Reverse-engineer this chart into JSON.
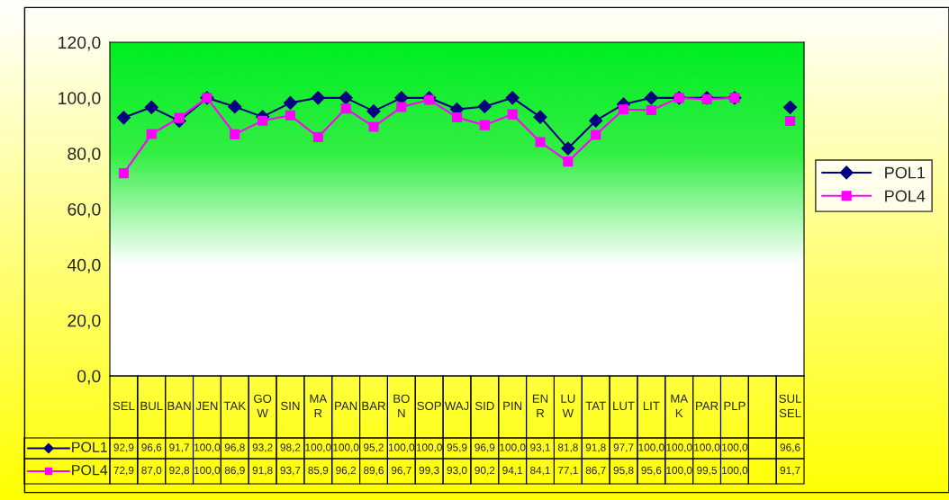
{
  "chart_data": {
    "type": "line",
    "categories": [
      "SEL",
      "BUL",
      "BAN",
      "JEN",
      "TAK",
      "GO\nW",
      "SIN",
      "MA\nR",
      "PAN",
      "BAR",
      "BO\nN",
      "SOP",
      "WAJ",
      "SID",
      "PIN",
      "EN\nR",
      "LU\nW",
      "TAT",
      "LUT",
      "LIT",
      "MA\nK",
      "PAR",
      "PLP",
      null,
      "SUL\nSEL"
    ],
    "series": [
      {
        "name": "POL1",
        "color": "#000080",
        "marker": "diamond",
        "values": [
          92.9,
          96.6,
          91.7,
          100.0,
          96.8,
          93.2,
          98.2,
          100.0,
          100.0,
          95.2,
          100.0,
          100.0,
          95.9,
          96.9,
          100.0,
          93.1,
          81.8,
          91.8,
          97.7,
          100.0,
          100.0,
          100.0,
          100.0,
          null,
          96.6
        ],
        "value_labels": [
          "92,9",
          "96,6",
          "91,7",
          "100,0",
          "96,8",
          "93,2",
          "98,2",
          "100,0",
          "100,0",
          "95,2",
          "100,0",
          "100,0",
          "95,9",
          "96,9",
          "100,0",
          "93,1",
          "81,8",
          "91,8",
          "97,7",
          "100,0",
          "100,0",
          "100,0",
          "100,0",
          null,
          "96,6"
        ]
      },
      {
        "name": "POL4",
        "color": "#ff00ff",
        "marker": "square",
        "values": [
          72.9,
          87.0,
          92.8,
          100.0,
          86.9,
          91.8,
          93.7,
          85.9,
          96.2,
          89.6,
          96.7,
          99.3,
          93.0,
          90.2,
          94.1,
          84.1,
          77.1,
          86.7,
          95.8,
          95.6,
          100.0,
          99.5,
          100.0,
          null,
          91.7
        ],
        "value_labels": [
          "72,9",
          "87,0",
          "92,8",
          "100,0",
          "86,9",
          "91,8",
          "93,7",
          "85,9",
          "96,2",
          "89,6",
          "96,7",
          "99,3",
          "93,0",
          "90,2",
          "94,1",
          "84,1",
          "77,1",
          "86,7",
          "95,8",
          "95,6",
          "100,0",
          "99,5",
          "100,0",
          null,
          "91,7"
        ]
      }
    ],
    "ylim": [
      0,
      120
    ],
    "yticks": [
      {
        "value": 0,
        "label": "0,0"
      },
      {
        "value": 20,
        "label": "20,0"
      },
      {
        "value": 40,
        "label": "40,0"
      },
      {
        "value": 60,
        "label": "60,0"
      },
      {
        "value": 80,
        "label": "80,0"
      },
      {
        "value": 100,
        "label": "100,0"
      },
      {
        "value": 120,
        "label": "120,0"
      }
    ],
    "grid": false,
    "legend": "right"
  }
}
